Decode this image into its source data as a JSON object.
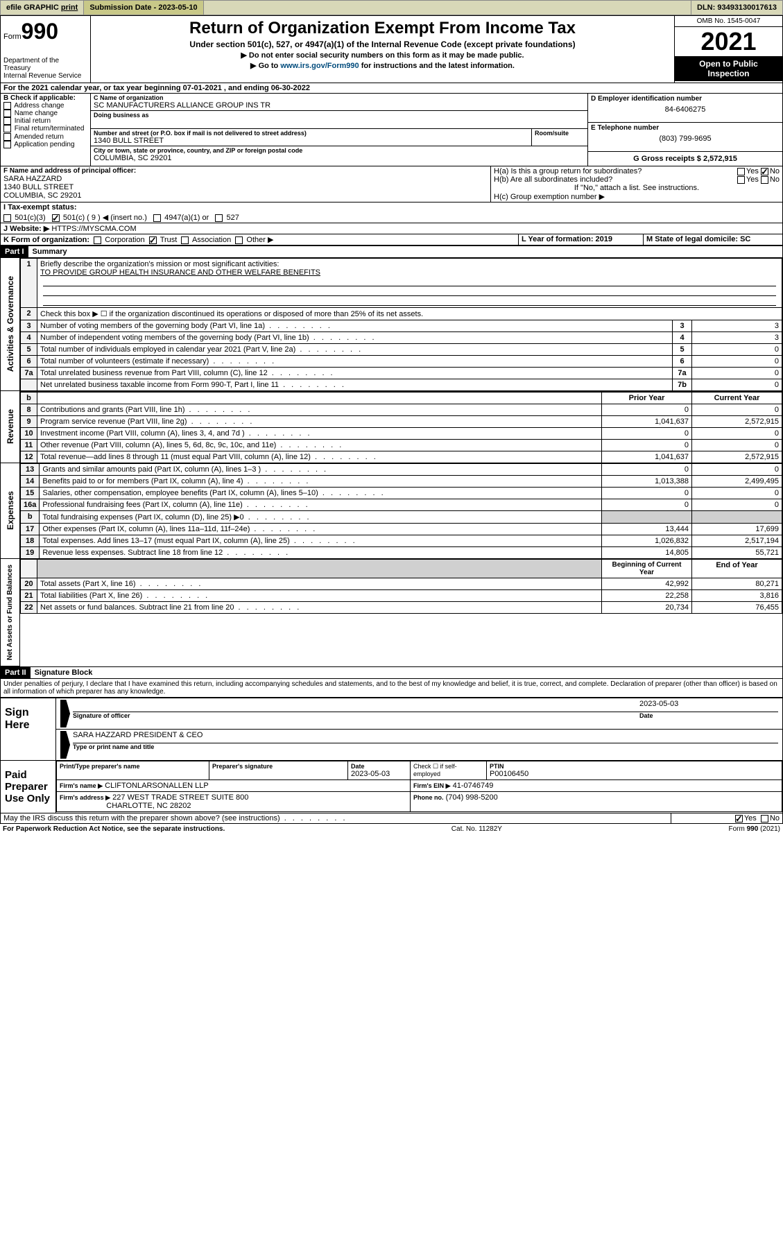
{
  "topbar": {
    "efile": "efile GRAPHIC",
    "print": "print",
    "submission_label": "Submission Date - 2023-05-10",
    "dln": "DLN: 93493130017613"
  },
  "header": {
    "form_word": "Form",
    "form_number": "990",
    "dept": "Department of the Treasury",
    "irs": "Internal Revenue Service",
    "title": "Return of Organization Exempt From Income Tax",
    "subtitle": "Under section 501(c), 527, or 4947(a)(1) of the Internal Revenue Code (except private foundations)",
    "inst1": "▶ Do not enter social security numbers on this form as it may be made public.",
    "inst2_pre": "▶ Go to ",
    "inst2_link": "www.irs.gov/Form990",
    "inst2_post": " for instructions and the latest information.",
    "omb": "OMB No. 1545-0047",
    "year": "2021",
    "open": "Open to Public Inspection"
  },
  "lineA": {
    "text": "For the 2021 calendar year, or tax year beginning 07-01-2021   , and ending 06-30-2022"
  },
  "boxB": {
    "label": "B Check if applicable:",
    "items": [
      "Address change",
      "Name change",
      "Initial return",
      "Final return/terminated",
      "Amended return",
      "Application pending"
    ]
  },
  "boxC": {
    "label": "C Name of organization",
    "name": "SC MANUFACTURERS ALLIANCE GROUP INS TR",
    "dba_label": "Doing business as",
    "addr_label": "Number and street (or P.O. box if mail is not delivered to street address)",
    "room_label": "Room/suite",
    "addr": "1340 BULL STREET",
    "city_label": "City or town, state or province, country, and ZIP or foreign postal code",
    "city": "COLUMBIA, SC  29201"
  },
  "boxD": {
    "label": "D Employer identification number",
    "value": "84-6406275"
  },
  "boxE": {
    "label": "E Telephone number",
    "value": "(803) 799-9695"
  },
  "boxG": {
    "label": "G Gross receipts $ 2,572,915"
  },
  "boxF": {
    "label": "F  Name and address of principal officer:",
    "name": "SARA HAZZARD",
    "addr1": "1340 BULL STREET",
    "addr2": "COLUMBIA, SC  29201"
  },
  "boxH": {
    "a_label": "H(a)  Is this a group return for subordinates?",
    "a_yes": "Yes",
    "a_no": "No",
    "b_label": "H(b)  Are all subordinates included?",
    "b_note": "If \"No,\" attach a list. See instructions.",
    "c_label": "H(c)  Group exemption number ▶"
  },
  "lineI": {
    "label": "I   Tax-exempt status:",
    "opts": [
      "501(c)(3)",
      "501(c) ( 9 ) ◀ (insert no.)",
      "4947(a)(1) or",
      "527"
    ]
  },
  "lineJ": {
    "label": "J   Website: ▶",
    "value": "HTTPS://MYSCMA.COM"
  },
  "lineK": {
    "label": "K Form of organization:",
    "opts": [
      "Corporation",
      "Trust",
      "Association",
      "Other ▶"
    ]
  },
  "lineL": {
    "label": "L Year of formation: 2019"
  },
  "lineM": {
    "label": "M State of legal domicile: SC"
  },
  "part1": {
    "header": "Part I",
    "title": "Summary"
  },
  "summary": {
    "line1_label": "Briefly describe the organization's mission or most significant activities:",
    "line1_value": "TO PROVIDE GROUP HEALTH INSURANCE AND OTHER WELFARE BENEFITS",
    "line2": "Check this box ▶ ☐ if the organization discontinued its operations or disposed of more than 25% of its net assets.",
    "rows_gov": [
      {
        "n": "3",
        "t": "Number of voting members of the governing body (Part VI, line 1a)",
        "box": "3",
        "v": "3"
      },
      {
        "n": "4",
        "t": "Number of independent voting members of the governing body (Part VI, line 1b)",
        "box": "4",
        "v": "3"
      },
      {
        "n": "5",
        "t": "Total number of individuals employed in calendar year 2021 (Part V, line 2a)",
        "box": "5",
        "v": "0"
      },
      {
        "n": "6",
        "t": "Total number of volunteers (estimate if necessary)",
        "box": "6",
        "v": "0"
      },
      {
        "n": "7a",
        "t": "Total unrelated business revenue from Part VIII, column (C), line 12",
        "box": "7a",
        "v": "0"
      },
      {
        "n": "",
        "t": "Net unrelated business taxable income from Form 990-T, Part I, line 11",
        "box": "7b",
        "v": "0"
      }
    ],
    "year_hdr_prior": "Prior Year",
    "year_hdr_curr": "Current Year",
    "rows_rev": [
      {
        "n": "8",
        "t": "Contributions and grants (Part VIII, line 1h)",
        "p": "0",
        "c": "0"
      },
      {
        "n": "9",
        "t": "Program service revenue (Part VIII, line 2g)",
        "p": "1,041,637",
        "c": "2,572,915"
      },
      {
        "n": "10",
        "t": "Investment income (Part VIII, column (A), lines 3, 4, and 7d )",
        "p": "0",
        "c": "0"
      },
      {
        "n": "11",
        "t": "Other revenue (Part VIII, column (A), lines 5, 6d, 8c, 9c, 10c, and 11e)",
        "p": "0",
        "c": "0"
      },
      {
        "n": "12",
        "t": "Total revenue—add lines 8 through 11 (must equal Part VIII, column (A), line 12)",
        "p": "1,041,637",
        "c": "2,572,915"
      }
    ],
    "rows_exp": [
      {
        "n": "13",
        "t": "Grants and similar amounts paid (Part IX, column (A), lines 1–3 )",
        "p": "0",
        "c": "0"
      },
      {
        "n": "14",
        "t": "Benefits paid to or for members (Part IX, column (A), line 4)",
        "p": "1,013,388",
        "c": "2,499,495"
      },
      {
        "n": "15",
        "t": "Salaries, other compensation, employee benefits (Part IX, column (A), lines 5–10)",
        "p": "0",
        "c": "0"
      },
      {
        "n": "16a",
        "t": "Professional fundraising fees (Part IX, column (A), line 11e)",
        "p": "0",
        "c": "0"
      },
      {
        "n": "b",
        "t": "Total fundraising expenses (Part IX, column (D), line 25) ▶0",
        "p": "",
        "c": "",
        "shade": true
      },
      {
        "n": "17",
        "t": "Other expenses (Part IX, column (A), lines 11a–11d, 11f–24e)",
        "p": "13,444",
        "c": "17,699"
      },
      {
        "n": "18",
        "t": "Total expenses. Add lines 13–17 (must equal Part IX, column (A), line 25)",
        "p": "1,026,832",
        "c": "2,517,194"
      },
      {
        "n": "19",
        "t": "Revenue less expenses. Subtract line 18 from line 12",
        "p": "14,805",
        "c": "55,721"
      }
    ],
    "net_hdr_begin": "Beginning of Current Year",
    "net_hdr_end": "End of Year",
    "rows_net": [
      {
        "n": "20",
        "t": "Total assets (Part X, line 16)",
        "p": "42,992",
        "c": "80,271"
      },
      {
        "n": "21",
        "t": "Total liabilities (Part X, line 26)",
        "p": "22,258",
        "c": "3,816"
      },
      {
        "n": "22",
        "t": "Net assets or fund balances. Subtract line 21 from line 20",
        "p": "20,734",
        "c": "76,455"
      }
    ]
  },
  "vert_labels": {
    "gov": "Activities & Governance",
    "rev": "Revenue",
    "exp": "Expenses",
    "net": "Net Assets or Fund Balances"
  },
  "part2": {
    "header": "Part II",
    "title": "Signature Block"
  },
  "sig": {
    "penalty": "Under penalties of perjury, I declare that I have examined this return, including accompanying schedules and statements, and to the best of my knowledge and belief, it is true, correct, and complete. Declaration of preparer (other than officer) is based on all information of which preparer has any knowledge.",
    "sign_here": "Sign Here",
    "sig_officer": "Signature of officer",
    "date_label": "Date",
    "date_value": "2023-05-03",
    "name_line": "SARA HAZZARD  PRESIDENT & CEO",
    "type_label": "Type or print name and title",
    "paid": "Paid Preparer Use Only",
    "prep_name_label": "Print/Type preparer's name",
    "prep_sig_label": "Preparer's signature",
    "prep_date": "2023-05-03",
    "check_label": "Check ☐ if self-employed",
    "ptin_label": "PTIN",
    "ptin": "P00106450",
    "firm_name_label": "Firm's name     ▶",
    "firm_name": "CLIFTONLARSONALLEN LLP",
    "firm_ein_label": "Firm's EIN ▶",
    "firm_ein": "41-0746749",
    "firm_addr_label": "Firm's address ▶",
    "firm_addr1": "227 WEST TRADE STREET SUITE 800",
    "firm_addr2": "CHARLOTTE, NC  28202",
    "phone_label": "Phone no.",
    "phone": "(704) 998-5200",
    "may_discuss": "May the IRS discuss this return with the preparer shown above? (see instructions)",
    "yes": "Yes",
    "no": "No"
  },
  "footer": {
    "left": "For Paperwork Reduction Act Notice, see the separate instructions.",
    "mid": "Cat. No. 11282Y",
    "right": "Form 990 (2021)"
  },
  "colors": {
    "topbar_bg": "#d8d8b8",
    "submission_bg": "#c8c888",
    "link": "#004b7c"
  }
}
